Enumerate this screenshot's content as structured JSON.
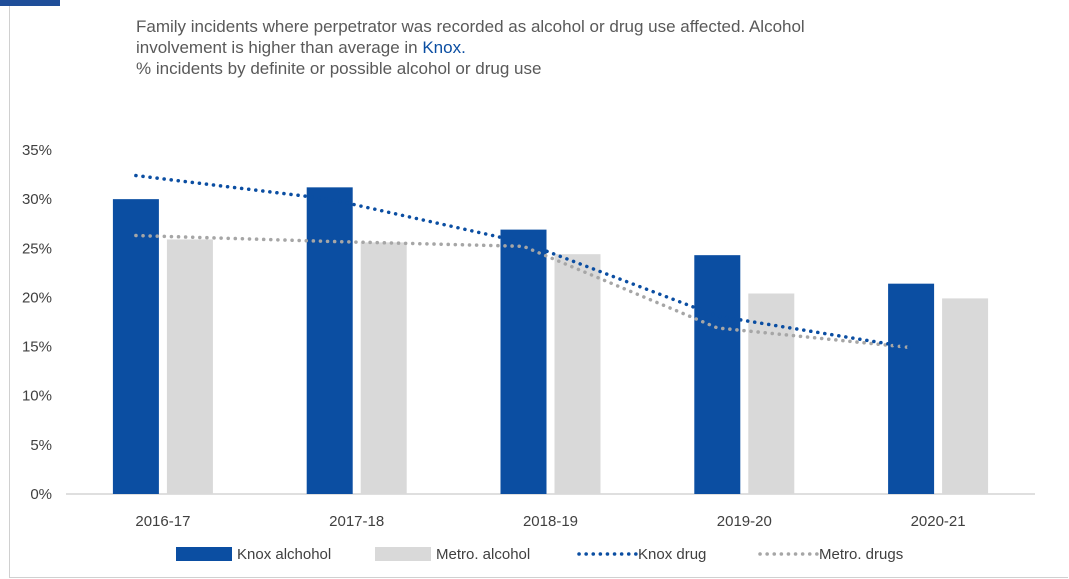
{
  "subtitle": {
    "line1": "Family incidents where perpetrator was recorded as alcohol or drug use affected. Alcohol",
    "line2_prefix": "involvement is higher than average in ",
    "line2_highlight": "Knox.",
    "line3": "% incidents by definite or possible alcohol or drug use"
  },
  "colors": {
    "knox": "#0b4ea2",
    "metro": "#d9d9d9",
    "metro_drug": "#a6a6a6",
    "axis": "#bfbfbf",
    "text": "#404040"
  },
  "chart_data": {
    "type": "bar",
    "categories": [
      "2016-17",
      "2017-18",
      "2018-19",
      "2019-20",
      "2020-21"
    ],
    "ylim": [
      0,
      35
    ],
    "yticks": [
      "0%",
      "5%",
      "10%",
      "15%",
      "20%",
      "25%",
      "30%",
      "35%"
    ],
    "grid": false,
    "legend_position": "bottom",
    "series": [
      {
        "name": "Knox alchohol",
        "kind": "bar",
        "values": [
          30.0,
          31.2,
          26.9,
          24.3,
          21.4
        ]
      },
      {
        "name": "Metro. alcohol",
        "kind": "bar",
        "values": [
          25.9,
          25.6,
          24.4,
          20.4,
          19.9
        ]
      },
      {
        "name": "Knox drug",
        "kind": "dotted-line",
        "values": [
          32.4,
          30.0,
          25.6,
          18.1,
          14.9
        ]
      },
      {
        "name": "Metro. drugs",
        "kind": "dotted-line",
        "values": [
          26.3,
          25.7,
          25.2,
          16.9,
          14.9
        ]
      }
    ]
  }
}
